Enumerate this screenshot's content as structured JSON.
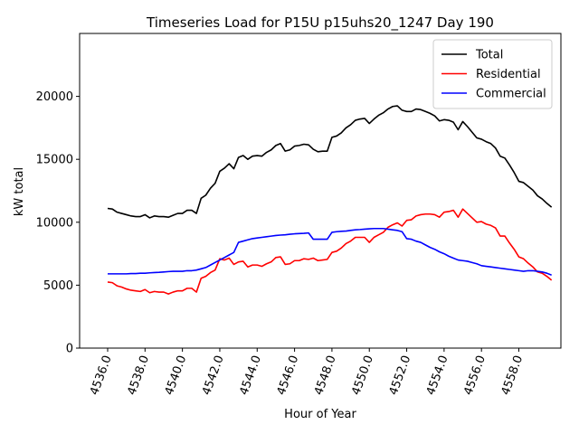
{
  "chart_data": {
    "type": "line",
    "title": "Timeseries Load for P15U p15uhs20_1247  Day 190",
    "xlabel": "Hour of Year",
    "ylabel": "kW total",
    "xlim": [
      4534.5,
      4560.25
    ],
    "ylim": [
      0,
      25000
    ],
    "x_ticks": [
      4536,
      4538,
      4540,
      4542,
      4544,
      4546,
      4548,
      4550,
      4552,
      4554,
      4556,
      4558
    ],
    "x_tick_labels": [
      "4536.0",
      "4538.0",
      "4540.0",
      "4542.0",
      "4544.0",
      "4546.0",
      "4548.0",
      "4550.0",
      "4552.0",
      "4554.0",
      "4556.0",
      "4558.0"
    ],
    "y_ticks": [
      0,
      5000,
      10000,
      15000,
      20000
    ],
    "y_tick_labels": [
      "0",
      "5000",
      "10000",
      "15000",
      "20000"
    ],
    "legend_position": "top-right",
    "x": [
      4536.0,
      4536.25,
      4536.5,
      4536.75,
      4537.0,
      4537.25,
      4537.5,
      4537.75,
      4538.0,
      4538.25,
      4538.5,
      4538.75,
      4539.0,
      4539.25,
      4539.5,
      4539.75,
      4540.0,
      4540.25,
      4540.5,
      4540.75,
      4541.0,
      4541.25,
      4541.5,
      4541.75,
      4542.0,
      4542.25,
      4542.5,
      4542.75,
      4543.0,
      4543.25,
      4543.5,
      4543.75,
      4544.0,
      4544.25,
      4544.5,
      4544.75,
      4545.0,
      4545.25,
      4545.5,
      4545.75,
      4546.0,
      4546.25,
      4546.5,
      4546.75,
      4547.0,
      4547.25,
      4547.5,
      4547.75,
      4548.0,
      4548.25,
      4548.5,
      4548.75,
      4549.0,
      4549.25,
      4549.5,
      4549.75,
      4550.0,
      4550.25,
      4550.5,
      4550.75,
      4551.0,
      4551.25,
      4551.5,
      4551.75,
      4552.0,
      4552.25,
      4552.5,
      4552.75,
      4553.0,
      4553.25,
      4553.5,
      4553.75,
      4554.0,
      4554.25,
      4554.5,
      4554.75,
      4555.0,
      4555.25,
      4555.5,
      4555.75,
      4556.0,
      4556.25,
      4556.5,
      4556.75,
      4557.0,
      4557.25,
      4557.5,
      4557.75,
      4558.0,
      4558.25,
      4558.5,
      4558.75,
      4559.0,
      4559.25,
      4559.5,
      4559.75
    ],
    "series": [
      {
        "name": "Total",
        "color": "#000000",
        "values": [
          11100,
          11050,
          10800,
          10700,
          10600,
          10500,
          10450,
          10450,
          10600,
          10350,
          10500,
          10450,
          10450,
          10400,
          10550,
          10700,
          10700,
          10950,
          10950,
          10700,
          11900,
          12150,
          12700,
          13100,
          14050,
          14300,
          14650,
          14250,
          15150,
          15300,
          15000,
          15250,
          15300,
          15250,
          15550,
          15750,
          16100,
          16250,
          15650,
          15750,
          16050,
          16100,
          16200,
          16150,
          15800,
          15600,
          15650,
          15650,
          16750,
          16850,
          17100,
          17500,
          17750,
          18100,
          18200,
          18250,
          17850,
          18200,
          18500,
          18700,
          19000,
          19200,
          19250,
          18900,
          18800,
          18800,
          19000,
          18950,
          18800,
          18650,
          18450,
          18050,
          18150,
          18100,
          17950,
          17350,
          18000,
          17600,
          17150,
          16700,
          16600,
          16400,
          16250,
          15900,
          15250,
          15100,
          14550,
          13950,
          13250,
          13150,
          12850,
          12550,
          12100,
          11850,
          11500,
          11200
        ]
      },
      {
        "name": "Residential",
        "color": "#ff0000",
        "values": [
          5250,
          5200,
          4950,
          4850,
          4700,
          4600,
          4550,
          4500,
          4650,
          4400,
          4500,
          4450,
          4450,
          4300,
          4450,
          4550,
          4550,
          4750,
          4750,
          4450,
          5550,
          5700,
          6000,
          6200,
          7100,
          7000,
          7150,
          6650,
          6850,
          6900,
          6450,
          6600,
          6600,
          6500,
          6700,
          6850,
          7200,
          7250,
          6650,
          6700,
          6950,
          6950,
          7100,
          7050,
          7150,
          6950,
          7000,
          7050,
          7600,
          7700,
          7950,
          8300,
          8500,
          8800,
          8800,
          8800,
          8400,
          8800,
          9000,
          9200,
          9600,
          9800,
          9950,
          9700,
          10150,
          10200,
          10500,
          10600,
          10650,
          10650,
          10600,
          10400,
          10800,
          10850,
          10950,
          10400,
          11050,
          10700,
          10350,
          10000,
          10050,
          9850,
          9750,
          9550,
          8900,
          8900,
          8350,
          7850,
          7250,
          7100,
          6750,
          6450,
          6050,
          5950,
          5700,
          5400
        ]
      },
      {
        "name": "Commercial",
        "color": "#0000ff",
        "values": [
          5900,
          5900,
          5900,
          5900,
          5900,
          5920,
          5920,
          5950,
          5950,
          5980,
          6000,
          6020,
          6050,
          6080,
          6100,
          6100,
          6100,
          6150,
          6150,
          6200,
          6300,
          6400,
          6600,
          6800,
          7000,
          7200,
          7400,
          7600,
          8400,
          8500,
          8600,
          8700,
          8750,
          8800,
          8850,
          8900,
          8950,
          8980,
          9000,
          9050,
          9080,
          9100,
          9120,
          9150,
          8650,
          8650,
          8650,
          8650,
          9200,
          9250,
          9280,
          9300,
          9350,
          9400,
          9420,
          9450,
          9480,
          9500,
          9500,
          9500,
          9450,
          9400,
          9350,
          9250,
          8700,
          8650,
          8500,
          8400,
          8200,
          8000,
          7850,
          7650,
          7500,
          7300,
          7150,
          7000,
          6950,
          6900,
          6800,
          6700,
          6550,
          6500,
          6450,
          6400,
          6350,
          6300,
          6250,
          6200,
          6150,
          6100,
          6150,
          6150,
          6100,
          6050,
          5950,
          5800
        ]
      }
    ]
  }
}
